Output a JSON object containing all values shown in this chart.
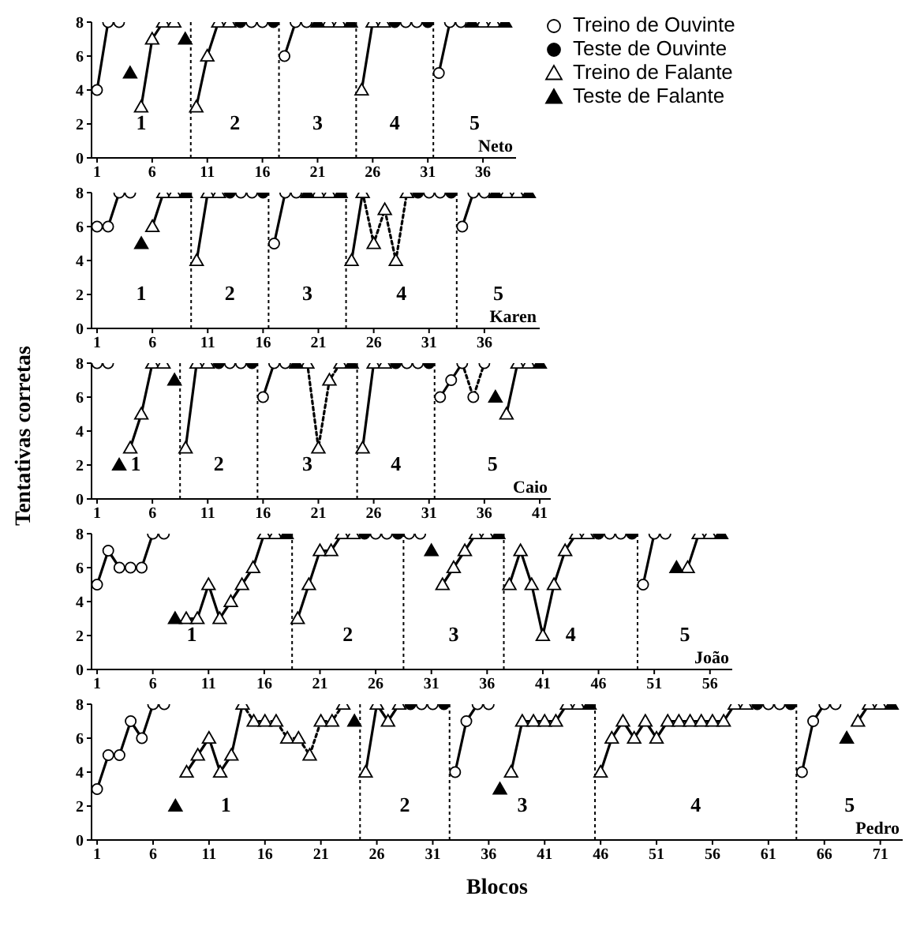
{
  "chart_data": [
    {
      "type": "scatter",
      "xlim": [
        0.5,
        39
      ],
      "xticks": [
        1,
        6,
        11,
        16,
        21,
        26,
        31,
        36
      ],
      "ylim": [
        0,
        8
      ],
      "yticks": [
        0,
        2,
        4,
        6,
        8
      ],
      "grid": false,
      "legend": "top right",
      "ref_lines": [
        {
          "axis": "x",
          "value": 9.5,
          "line_style": "dotted"
        },
        {
          "axis": "x",
          "value": 17.5,
          "line_style": "dotted"
        },
        {
          "axis": "x",
          "value": 24.5,
          "line_style": "dotted"
        },
        {
          "axis": "x",
          "value": 31.5,
          "line_style": "dotted"
        }
      ],
      "annotations": [
        "1",
        "2",
        "3",
        "4",
        "5",
        "Neto"
      ],
      "series": [
        {
          "type": "line",
          "marker": "none",
          "line_style": "solid",
          "color": "#000000",
          "x": [
            1,
            2
          ],
          "values": [
            4,
            8
          ]
        },
        {
          "type": "line",
          "marker": "none",
          "line_style": "solid",
          "color": "#000000",
          "x": [
            5,
            6,
            7
          ],
          "values": [
            3,
            7,
            8
          ]
        },
        {
          "type": "line",
          "marker": "none",
          "line_style": "solid",
          "color": "#000000",
          "x": [
            10,
            11,
            12
          ],
          "values": [
            3,
            6,
            8
          ]
        },
        {
          "type": "line",
          "marker": "none",
          "line_style": "solid",
          "color": "#000000",
          "x": [
            18,
            19
          ],
          "values": [
            6,
            8
          ]
        },
        {
          "type": "line",
          "marker": "none",
          "line_style": "solid",
          "color": "#000000",
          "x": [
            25,
            26
          ],
          "values": [
            4,
            8
          ]
        },
        {
          "type": "line",
          "marker": "none",
          "line_style": "solid",
          "color": "#000000",
          "x": [
            32,
            33
          ],
          "values": [
            5,
            8
          ]
        },
        {
          "name": "Treino de Ouvinte",
          "type": "scatter",
          "marker": "circle",
          "color": "#ffffff",
          "x": [
            1,
            2,
            3,
            15,
            16,
            18,
            19,
            20,
            29,
            30,
            32,
            33,
            34
          ],
          "values": [
            4,
            8,
            8,
            8,
            8,
            6,
            8,
            8,
            8,
            8,
            5,
            8,
            8
          ]
        },
        {
          "name": "Teste de Ouvinte",
          "type": "scatter",
          "marker": "circle",
          "color": "#000000",
          "x": [
            14,
            17,
            28,
            31
          ],
          "values": [
            8,
            8,
            8,
            8
          ]
        },
        {
          "name": "Treino de Falante",
          "type": "scatter",
          "marker": "triangle",
          "color": "#ffffff",
          "x": [
            5,
            6,
            7,
            8,
            10,
            11,
            12,
            13,
            22,
            23,
            25,
            26,
            27,
            36,
            37
          ],
          "values": [
            3,
            7,
            8,
            8,
            3,
            6,
            8,
            8,
            8,
            8,
            4,
            8,
            8,
            8,
            8
          ]
        },
        {
          "name": "Teste de Falante",
          "type": "scatter",
          "marker": "triangle",
          "color": "#000000",
          "x": [
            4,
            9,
            21,
            24,
            35,
            38
          ],
          "values": [
            5,
            7,
            8,
            8,
            8,
            8
          ]
        }
      ]
    },
    {
      "type": "scatter",
      "xlim": [
        0.5,
        41
      ],
      "xticks": [
        1,
        6,
        11,
        16,
        21,
        26,
        31,
        36
      ],
      "ylim": [
        0,
        8
      ],
      "yticks": [
        0,
        2,
        4,
        6,
        8
      ],
      "grid": false,
      "ref_lines": [
        {
          "axis": "x",
          "value": 9.5,
          "line_style": "dotted"
        },
        {
          "axis": "x",
          "value": 16.5,
          "line_style": "dotted"
        },
        {
          "axis": "x",
          "value": 23.5,
          "line_style": "dotted"
        },
        {
          "axis": "x",
          "value": 33.5,
          "line_style": "dotted"
        }
      ],
      "annotations": [
        "1",
        "2",
        "3",
        "4",
        "5",
        "Karen"
      ],
      "series": [
        {
          "type": "line",
          "marker": "none",
          "line_style": "solid",
          "color": "#000000",
          "x": [
            1,
            2,
            3
          ],
          "values": [
            6,
            6,
            8
          ]
        },
        {
          "type": "line",
          "marker": "none",
          "line_style": "solid",
          "color": "#000000",
          "x": [
            6,
            7
          ],
          "values": [
            6,
            8
          ]
        },
        {
          "type": "line",
          "marker": "none",
          "line_style": "solid",
          "color": "#000000",
          "x": [
            10,
            11
          ],
          "values": [
            4,
            8
          ]
        },
        {
          "type": "line",
          "marker": "none",
          "line_style": "solid",
          "color": "#000000",
          "x": [
            17,
            18
          ],
          "values": [
            5,
            8
          ]
        },
        {
          "type": "line",
          "marker": "none",
          "line_style": "solid",
          "color": "#000000",
          "x": [
            24,
            25
          ],
          "values": [
            4,
            8
          ]
        },
        {
          "type": "line",
          "marker": "none",
          "line_style": "dotted",
          "color": "#000000",
          "x": [
            25,
            26,
            27,
            28,
            29
          ],
          "values": [
            8,
            5,
            7,
            4,
            8
          ]
        },
        {
          "type": "line",
          "marker": "none",
          "line_style": "solid",
          "color": "#000000",
          "x": [
            34,
            35
          ],
          "values": [
            6,
            8
          ]
        },
        {
          "type": "scatter",
          "marker": "circle",
          "color": "#ffffff",
          "x": [
            1,
            2,
            3,
            4,
            14,
            15,
            17,
            18,
            19,
            31,
            32,
            34,
            35,
            36
          ],
          "values": [
            6,
            6,
            8,
            8,
            8,
            8,
            5,
            8,
            8,
            8,
            8,
            6,
            8,
            8
          ]
        },
        {
          "type": "scatter",
          "marker": "circle",
          "color": "#000000",
          "x": [
            13,
            16,
            30,
            33
          ],
          "values": [
            8,
            8,
            8,
            8
          ]
        },
        {
          "type": "scatter",
          "marker": "triangle",
          "color": "#ffffff",
          "x": [
            6,
            7,
            8,
            10,
            11,
            12,
            21,
            22,
            24,
            25,
            26,
            27,
            28,
            29,
            38,
            39
          ],
          "values": [
            6,
            8,
            8,
            4,
            8,
            8,
            8,
            8,
            4,
            8,
            5,
            7,
            4,
            8,
            8,
            8
          ]
        },
        {
          "type": "scatter",
          "marker": "triangle",
          "color": "#000000",
          "x": [
            5,
            9,
            20,
            23,
            37,
            40
          ],
          "values": [
            5,
            8,
            8,
            8,
            8,
            8
          ]
        }
      ]
    },
    {
      "type": "scatter",
      "xlim": [
        0.5,
        42
      ],
      "xticks": [
        1,
        6,
        11,
        16,
        21,
        26,
        31,
        36,
        41
      ],
      "ylim": [
        0,
        8
      ],
      "yticks": [
        0,
        2,
        4,
        6,
        8
      ],
      "grid": false,
      "ylabel": "Tentativas corretas",
      "ref_lines": [
        {
          "axis": "x",
          "value": 8.5,
          "line_style": "dotted"
        },
        {
          "axis": "x",
          "value": 15.5,
          "line_style": "dotted"
        },
        {
          "axis": "x",
          "value": 24.5,
          "line_style": "dotted"
        },
        {
          "axis": "x",
          "value": 31.5,
          "line_style": "dotted"
        }
      ],
      "annotations": [
        "1",
        "2",
        "3",
        "4",
        "5",
        "Caio"
      ],
      "series": [
        {
          "type": "line",
          "marker": "none",
          "line_style": "solid",
          "color": "#000000",
          "x": [
            4,
            5,
            6
          ],
          "values": [
            3,
            5,
            8
          ]
        },
        {
          "type": "line",
          "marker": "none",
          "line_style": "solid",
          "color": "#000000",
          "x": [
            9,
            10
          ],
          "values": [
            3,
            8
          ]
        },
        {
          "type": "line",
          "marker": "none",
          "line_style": "solid",
          "color": "#000000",
          "x": [
            16,
            17
          ],
          "values": [
            6,
            8
          ]
        },
        {
          "type": "line",
          "marker": "none",
          "line_style": "dotted",
          "color": "#000000",
          "x": [
            20,
            21,
            22,
            23
          ],
          "values": [
            8,
            3,
            7,
            8
          ]
        },
        {
          "type": "line",
          "marker": "none",
          "line_style": "solid",
          "color": "#000000",
          "x": [
            25,
            26
          ],
          "values": [
            3,
            8
          ]
        },
        {
          "type": "line",
          "marker": "none",
          "line_style": "solid",
          "color": "#000000",
          "x": [
            32,
            33,
            34
          ],
          "values": [
            6,
            7,
            8
          ]
        },
        {
          "type": "line",
          "marker": "none",
          "line_style": "dotted",
          "color": "#000000",
          "x": [
            34,
            35,
            36
          ],
          "values": [
            8,
            6,
            8
          ]
        },
        {
          "type": "line",
          "marker": "none",
          "line_style": "solid",
          "color": "#000000",
          "x": [
            38,
            39
          ],
          "values": [
            5,
            8
          ]
        },
        {
          "type": "scatter",
          "marker": "circle",
          "color": "#ffffff",
          "x": [
            1,
            2,
            13,
            14,
            16,
            17,
            18,
            29,
            30,
            32,
            33,
            34,
            35,
            36
          ],
          "values": [
            8,
            8,
            8,
            8,
            6,
            8,
            8,
            8,
            8,
            6,
            7,
            8,
            6,
            8
          ]
        },
        {
          "type": "scatter",
          "marker": "circle",
          "color": "#000000",
          "x": [
            12,
            15,
            28,
            31
          ],
          "values": [
            8,
            8,
            8,
            8
          ]
        },
        {
          "type": "scatter",
          "marker": "triangle",
          "color": "#ffffff",
          "x": [
            4,
            5,
            6,
            7,
            9,
            10,
            11,
            20,
            21,
            22,
            23,
            25,
            26,
            27,
            38,
            39,
            40
          ],
          "values": [
            3,
            5,
            8,
            8,
            3,
            8,
            8,
            8,
            3,
            7,
            8,
            3,
            8,
            8,
            5,
            8,
            8
          ]
        },
        {
          "type": "scatter",
          "marker": "triangle",
          "color": "#000000",
          "x": [
            3,
            8,
            19,
            24,
            37,
            41
          ],
          "values": [
            2,
            7,
            8,
            8,
            6,
            8
          ]
        }
      ]
    },
    {
      "type": "scatter",
      "xlim": [
        0.5,
        58
      ],
      "xticks": [
        1,
        6,
        11,
        16,
        21,
        26,
        31,
        36,
        41,
        46,
        51,
        56
      ],
      "ylim": [
        0,
        8
      ],
      "yticks": [
        0,
        2,
        4,
        6,
        8
      ],
      "grid": false,
      "ref_lines": [
        {
          "axis": "x",
          "value": 18.5,
          "line_style": "dotted"
        },
        {
          "axis": "x",
          "value": 28.5,
          "line_style": "dotted"
        },
        {
          "axis": "x",
          "value": 37.5,
          "line_style": "dotted"
        },
        {
          "axis": "x",
          "value": 49.5,
          "line_style": "dotted"
        }
      ],
      "annotations": [
        "1",
        "2",
        "3",
        "4",
        "5",
        "João"
      ],
      "series": [
        {
          "type": "line",
          "marker": "none",
          "line_style": "solid",
          "color": "#000000",
          "x": [
            1,
            2,
            3,
            4,
            5,
            6
          ],
          "values": [
            5,
            7,
            6,
            6,
            6,
            8
          ]
        },
        {
          "type": "line",
          "marker": "none",
          "line_style": "solid",
          "color": "#000000",
          "x": [
            9,
            10,
            11,
            12,
            13,
            14,
            15,
            16
          ],
          "values": [
            3,
            3,
            5,
            3,
            4,
            5,
            6,
            8
          ]
        },
        {
          "type": "line",
          "marker": "none",
          "line_style": "solid",
          "color": "#000000",
          "x": [
            19,
            20,
            21,
            22,
            23
          ],
          "values": [
            3,
            5,
            7,
            7,
            8
          ]
        },
        {
          "type": "line",
          "marker": "none",
          "line_style": "solid",
          "color": "#000000",
          "x": [
            32,
            33,
            34,
            35
          ],
          "values": [
            5,
            6,
            7,
            8
          ]
        },
        {
          "type": "line",
          "marker": "none",
          "line_style": "solid",
          "color": "#000000",
          "x": [
            38,
            39,
            40,
            41,
            42,
            43,
            44
          ],
          "values": [
            5,
            7,
            5,
            2,
            5,
            7,
            8
          ]
        },
        {
          "type": "line",
          "marker": "none",
          "line_style": "solid",
          "color": "#000000",
          "x": [
            50,
            51
          ],
          "values": [
            5,
            8
          ]
        },
        {
          "type": "line",
          "marker": "none",
          "line_style": "solid",
          "color": "#000000",
          "x": [
            54,
            55
          ],
          "values": [
            6,
            8
          ]
        },
        {
          "type": "scatter",
          "marker": "circle",
          "color": "#ffffff",
          "x": [
            1,
            2,
            3,
            4,
            5,
            6,
            7,
            26,
            27,
            29,
            30,
            47,
            48,
            50,
            51,
            52
          ],
          "values": [
            5,
            7,
            6,
            6,
            6,
            8,
            8,
            8,
            8,
            8,
            8,
            8,
            8,
            5,
            8,
            8
          ]
        },
        {
          "type": "scatter",
          "marker": "circle",
          "color": "#000000",
          "x": [
            25,
            28,
            46,
            49
          ],
          "values": [
            8,
            8,
            8,
            8
          ]
        },
        {
          "type": "scatter",
          "marker": "triangle",
          "color": "#ffffff",
          "x": [
            9,
            10,
            11,
            12,
            13,
            14,
            15,
            16,
            17,
            19,
            20,
            21,
            22,
            23,
            24,
            32,
            33,
            34,
            35,
            36,
            38,
            39,
            40,
            41,
            42,
            43,
            44,
            45,
            54,
            55,
            56
          ],
          "values": [
            3,
            3,
            5,
            3,
            4,
            5,
            6,
            8,
            8,
            3,
            5,
            7,
            7,
            8,
            8,
            5,
            6,
            7,
            8,
            8,
            5,
            7,
            5,
            2,
            5,
            7,
            8,
            8,
            6,
            8,
            8
          ]
        },
        {
          "type": "scatter",
          "marker": "triangle",
          "color": "#000000",
          "x": [
            8,
            18,
            31,
            37,
            53,
            57
          ],
          "values": [
            3,
            8,
            7,
            8,
            6,
            8
          ]
        }
      ]
    },
    {
      "type": "scatter",
      "xlim": [
        0.5,
        73
      ],
      "xticks": [
        1,
        6,
        11,
        16,
        21,
        26,
        31,
        36,
        41,
        46,
        51,
        56,
        61,
        66,
        71
      ],
      "ylim": [
        0,
        8
      ],
      "yticks": [
        0,
        2,
        4,
        6,
        8
      ],
      "grid": false,
      "xlabel": "Blocos",
      "ref_lines": [
        {
          "axis": "x",
          "value": 24.5,
          "line_style": "dotted"
        },
        {
          "axis": "x",
          "value": 32.5,
          "line_style": "dotted"
        },
        {
          "axis": "x",
          "value": 45.5,
          "line_style": "dotted"
        },
        {
          "axis": "x",
          "value": 63.5,
          "line_style": "dotted"
        }
      ],
      "annotations": [
        "1",
        "2",
        "3",
        "4",
        "5",
        "Pedro"
      ],
      "series": [
        {
          "type": "line",
          "marker": "none",
          "line_style": "solid",
          "color": "#000000",
          "x": [
            1,
            2,
            3,
            4,
            5,
            6
          ],
          "values": [
            3,
            5,
            5,
            7,
            6,
            8
          ]
        },
        {
          "type": "line",
          "marker": "none",
          "line_style": "solid",
          "color": "#000000",
          "x": [
            9,
            10,
            11,
            12,
            13,
            14
          ],
          "values": [
            4,
            5,
            6,
            4,
            5,
            8
          ]
        },
        {
          "type": "line",
          "marker": "none",
          "line_style": "dotted",
          "color": "#000000",
          "x": [
            14,
            15,
            16,
            17,
            18,
            19,
            20,
            21,
            22,
            23
          ],
          "values": [
            8,
            7,
            7,
            7,
            6,
            6,
            5,
            7,
            7,
            8
          ]
        },
        {
          "type": "line",
          "marker": "none",
          "line_style": "solid",
          "color": "#000000",
          "x": [
            25,
            26,
            27,
            28
          ],
          "values": [
            4,
            8,
            7,
            8
          ]
        },
        {
          "type": "line",
          "marker": "none",
          "line_style": "solid",
          "color": "#000000",
          "x": [
            33,
            34,
            35
          ],
          "values": [
            4,
            7,
            8
          ]
        },
        {
          "type": "line",
          "marker": "none",
          "line_style": "solid",
          "color": "#000000",
          "x": [
            38,
            39,
            40,
            41,
            42,
            43
          ],
          "values": [
            4,
            7,
            7,
            7,
            7,
            8
          ]
        },
        {
          "type": "line",
          "marker": "none",
          "line_style": "solid",
          "color": "#000000",
          "x": [
            46,
            47,
            48,
            49,
            50,
            51,
            52,
            53,
            54,
            55,
            56,
            57,
            58
          ],
          "values": [
            4,
            6,
            7,
            6,
            7,
            6,
            7,
            7,
            7,
            7,
            7,
            7,
            8
          ]
        },
        {
          "type": "line",
          "marker": "none",
          "line_style": "solid",
          "color": "#000000",
          "x": [
            64,
            65,
            66
          ],
          "values": [
            4,
            7,
            8
          ]
        },
        {
          "type": "line",
          "marker": "none",
          "line_style": "solid",
          "color": "#000000",
          "x": [
            69,
            70
          ],
          "values": [
            7,
            8
          ]
        },
        {
          "type": "scatter",
          "marker": "circle",
          "color": "#ffffff",
          "x": [
            1,
            2,
            3,
            4,
            5,
            6,
            7,
            30,
            31,
            33,
            34,
            35,
            36,
            61,
            62,
            64,
            65,
            66,
            67
          ],
          "values": [
            3,
            5,
            5,
            7,
            6,
            8,
            8,
            8,
            8,
            4,
            7,
            8,
            8,
            8,
            8,
            4,
            7,
            8,
            8
          ]
        },
        {
          "type": "scatter",
          "marker": "circle",
          "color": "#000000",
          "x": [
            29,
            32,
            60,
            63
          ],
          "values": [
            8,
            8,
            8,
            8
          ]
        },
        {
          "type": "scatter",
          "marker": "triangle",
          "color": "#ffffff",
          "x": [
            9,
            10,
            11,
            12,
            13,
            14,
            15,
            16,
            17,
            18,
            19,
            20,
            21,
            22,
            23,
            25,
            26,
            27,
            28,
            38,
            39,
            40,
            41,
            42,
            43,
            44,
            46,
            47,
            48,
            49,
            50,
            51,
            52,
            53,
            54,
            55,
            56,
            57,
            58,
            59,
            69,
            70,
            71
          ],
          "values": [
            4,
            5,
            6,
            4,
            5,
            8,
            7,
            7,
            7,
            6,
            6,
            5,
            7,
            7,
            8,
            4,
            8,
            7,
            8,
            4,
            7,
            7,
            7,
            7,
            8,
            8,
            4,
            6,
            7,
            6,
            7,
            6,
            7,
            7,
            7,
            7,
            7,
            7,
            8,
            8,
            7,
            8,
            8
          ]
        },
        {
          "type": "scatter",
          "marker": "triangle",
          "color": "#000000",
          "x": [
            8,
            24,
            37,
            45,
            68,
            72
          ],
          "values": [
            2,
            7,
            3,
            8,
            6,
            8
          ]
        }
      ]
    }
  ]
}
